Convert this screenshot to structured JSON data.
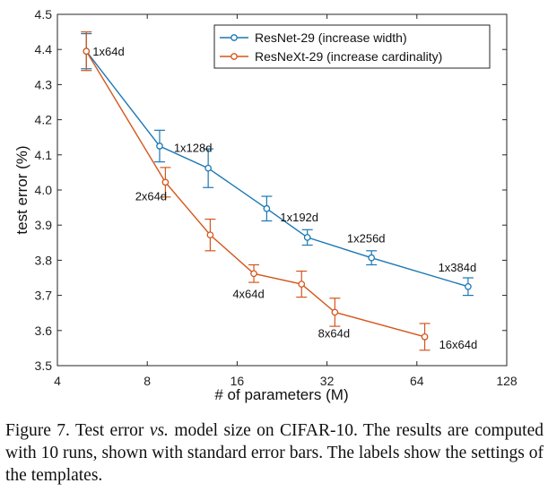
{
  "chart_data": {
    "type": "line",
    "xscale": "log2",
    "xlabel": "# of parameters (M)",
    "ylabel": "test error (%)",
    "xlim": [
      4,
      128
    ],
    "ylim": [
      3.5,
      4.5
    ],
    "xticks": [
      4,
      8,
      16,
      32,
      64,
      128
    ],
    "xtick_labels": [
      "4",
      "8",
      "16",
      "32",
      "64",
      "128"
    ],
    "yticks": [
      3.5,
      3.6,
      3.7,
      3.8,
      3.9,
      4.0,
      4.1,
      4.2,
      4.3,
      4.4,
      4.5
    ],
    "ytick_labels": [
      "3.5",
      "3.6",
      "3.7",
      "3.8",
      "3.9",
      "4.0",
      "4.1",
      "4.2",
      "4.3",
      "4.4",
      "4.5"
    ],
    "legend_position": "top-right",
    "series": [
      {
        "name": "ResNet-29 (increase width)",
        "color": "#1a78b4",
        "x": [
          5.0,
          8.8,
          12.8,
          20.1,
          27.5,
          45.1,
          95.0
        ],
        "y": [
          4.395,
          4.125,
          4.062,
          3.947,
          3.865,
          3.807,
          3.725
        ],
        "err": [
          0.05,
          0.045,
          0.055,
          0.035,
          0.022,
          0.02,
          0.025
        ],
        "labels": [
          "1x64d",
          "",
          "1x128d",
          "",
          "1x192d",
          "1x256d",
          "1x384d"
        ]
      },
      {
        "name": "ResNeXt-29 (increase cardinality)",
        "color": "#d4561c",
        "x": [
          5.0,
          9.2,
          13.0,
          18.2,
          26.3,
          34.0,
          68.0
        ],
        "y": [
          4.395,
          4.022,
          3.872,
          3.762,
          3.732,
          3.652,
          3.582
        ],
        "err": [
          0.055,
          0.042,
          0.045,
          0.025,
          0.037,
          0.04,
          0.038
        ],
        "labels": [
          "",
          "2x64d",
          "",
          "4x64d",
          "",
          "8x64d",
          "16x64d"
        ]
      }
    ]
  },
  "caption": {
    "part1": "Figure 7. Test error ",
    "vs": "vs.",
    "part2": " model size on CIFAR-10.  The results are computed with 10 runs, shown with standard error bars. The labels show the settings of the templates."
  }
}
